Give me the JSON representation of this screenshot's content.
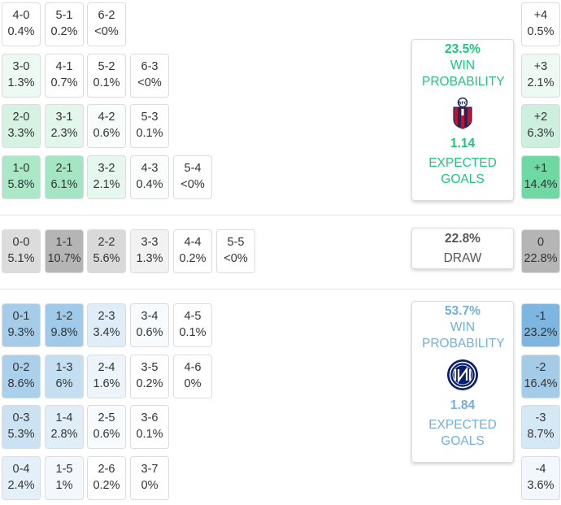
{
  "colors": {
    "home_accent": "#21c47a",
    "away_accent": "#73afd7",
    "draw_text": "#555555"
  },
  "home": {
    "win_pct": "23.5%",
    "win_label": "WIN PROBABILITY",
    "xg": "1.14",
    "xg_label": "EXPECTED GOALS",
    "logo_icon": "bologna-crest-icon"
  },
  "draw": {
    "pct": "22.8%",
    "label": "DRAW"
  },
  "away": {
    "win_pct": "53.7%",
    "win_label": "WIN PROBABILITY",
    "xg": "1.84",
    "xg_label": "EXPECTED GOALS",
    "logo_icon": "inter-crest-icon"
  },
  "home_rows": [
    [
      {
        "s": "4-0",
        "p": "0.4%",
        "c": "#ffffff"
      },
      {
        "s": "5-1",
        "p": "0.2%",
        "c": "#ffffff"
      },
      {
        "s": "6-2",
        "p": "<0%",
        "c": "#ffffff"
      }
    ],
    [
      {
        "s": "3-0",
        "p": "1.3%",
        "c": "#edf9f3"
      },
      {
        "s": "4-1",
        "p": "0.7%",
        "c": "#ffffff"
      },
      {
        "s": "5-2",
        "p": "0.1%",
        "c": "#ffffff"
      },
      {
        "s": "6-3",
        "p": "<0%",
        "c": "#ffffff"
      }
    ],
    [
      {
        "s": "2-0",
        "p": "3.3%",
        "c": "#d5f2e3"
      },
      {
        "s": "3-1",
        "p": "2.3%",
        "c": "#e2f6ec"
      },
      {
        "s": "4-2",
        "p": "0.6%",
        "c": "#f8fcfa"
      },
      {
        "s": "5-3",
        "p": "0.1%",
        "c": "#ffffff"
      }
    ],
    [
      {
        "s": "1-0",
        "p": "5.8%",
        "c": "#aae8c7"
      },
      {
        "s": "2-1",
        "p": "6.1%",
        "c": "#a4e6c3"
      },
      {
        "s": "3-2",
        "p": "2.1%",
        "c": "#e5f7ee"
      },
      {
        "s": "4-3",
        "p": "0.4%",
        "c": "#fafdfb"
      },
      {
        "s": "5-4",
        "p": "<0%",
        "c": "#ffffff"
      }
    ]
  ],
  "draw_row": [
    {
      "s": "0-0",
      "p": "5.1%",
      "c": "#dcdcdc"
    },
    {
      "s": "1-1",
      "p": "10.7%",
      "c": "#b5b5b5"
    },
    {
      "s": "2-2",
      "p": "5.6%",
      "c": "#d9d9d9"
    },
    {
      "s": "3-3",
      "p": "1.3%",
      "c": "#f2f2f2"
    },
    {
      "s": "4-4",
      "p": "0.2%",
      "c": "#ffffff"
    },
    {
      "s": "5-5",
      "p": "<0%",
      "c": "#ffffff"
    }
  ],
  "away_rows": [
    [
      {
        "s": "0-1",
        "p": "9.3%",
        "c": "#a5cdea"
      },
      {
        "s": "1-2",
        "p": "9.8%",
        "c": "#a0cae9"
      },
      {
        "s": "2-3",
        "p": "3.4%",
        "c": "#deedf8"
      },
      {
        "s": "3-4",
        "p": "0.6%",
        "c": "#f8fbfd"
      },
      {
        "s": "4-5",
        "p": "0.1%",
        "c": "#ffffff"
      }
    ],
    [
      {
        "s": "0-2",
        "p": "8.6%",
        "c": "#abd0eb"
      },
      {
        "s": "1-3",
        "p": "6%",
        "c": "#c4dff1"
      },
      {
        "s": "2-4",
        "p": "1.6%",
        "c": "#edf5fb"
      },
      {
        "s": "3-5",
        "p": "0.2%",
        "c": "#ffffff"
      },
      {
        "s": "4-6",
        "p": "0%",
        "c": "#ffffff"
      }
    ],
    [
      {
        "s": "0-3",
        "p": "5.3%",
        "c": "#cae2f2"
      },
      {
        "s": "1-4",
        "p": "2.8%",
        "c": "#e0eef8"
      },
      {
        "s": "2-5",
        "p": "0.6%",
        "c": "#f8fbfd"
      },
      {
        "s": "3-6",
        "p": "0.1%",
        "c": "#ffffff"
      }
    ],
    [
      {
        "s": "0-4",
        "p": "2.4%",
        "c": "#e3f0f9"
      },
      {
        "s": "1-5",
        "p": "1%",
        "c": "#f3f8fc"
      },
      {
        "s": "2-6",
        "p": "0.2%",
        "c": "#ffffff"
      },
      {
        "s": "3-7",
        "p": "0%",
        "c": "#ffffff"
      }
    ]
  ],
  "margins_home": [
    {
      "s": "+4",
      "p": "0.5%",
      "c": "#ffffff"
    },
    {
      "s": "+3",
      "p": "2.1%",
      "c": "#edf9f3"
    },
    {
      "s": "+2",
      "p": "6.3%",
      "c": "#cdf0de"
    },
    {
      "s": "+1",
      "p": "14.4%",
      "c": "#6ed9a3"
    }
  ],
  "margin_draw": {
    "s": "0",
    "p": "22.8%",
    "c": "#b5b5b5"
  },
  "margins_away": [
    {
      "s": "-1",
      "p": "23.2%",
      "c": "#7cb6e1"
    },
    {
      "s": "-2",
      "p": "16.4%",
      "c": "#a4cce9"
    },
    {
      "s": "-3",
      "p": "8.7%",
      "c": "#d5e8f5"
    },
    {
      "s": "-4",
      "p": "3.6%",
      "c": "#f1f7fc"
    }
  ]
}
